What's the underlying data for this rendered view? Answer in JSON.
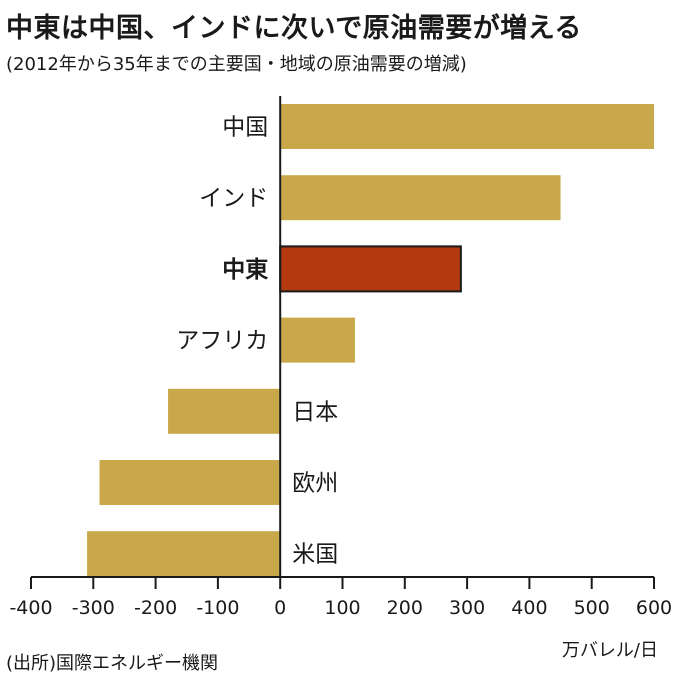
{
  "header": {
    "title": "中東は中国、インドに次いで原油需要が増える",
    "subtitle": "(2012年から35年までの主要国・地域の原油需要の増減)"
  },
  "footer": {
    "source": "(出所)国際エネルギー機関",
    "unit": "万バレル/日"
  },
  "chart_data": {
    "type": "bar",
    "orientation": "horizontal",
    "title": "中東は中国、インドに次いで原油需要が増える",
    "subtitle": "(2012年から35年までの主要国・地域の原油需要の増減)",
    "categories": [
      "中国",
      "インド",
      "中東",
      "アフリカ",
      "日本",
      "欧州",
      "米国"
    ],
    "values": [
      600,
      450,
      290,
      120,
      -180,
      -290,
      -310
    ],
    "highlight": "中東",
    "colors": {
      "default": "#C8A84B",
      "highlight": "#B23A0E",
      "axis": "#1a1a1a"
    },
    "xlim": [
      -400,
      600
    ],
    "xticks": [
      -400,
      -300,
      -200,
      -100,
      0,
      100,
      200,
      300,
      400,
      500,
      600
    ],
    "xlabel": "万バレル/日",
    "grid": false,
    "source": "(出所)国際エネルギー機関"
  }
}
